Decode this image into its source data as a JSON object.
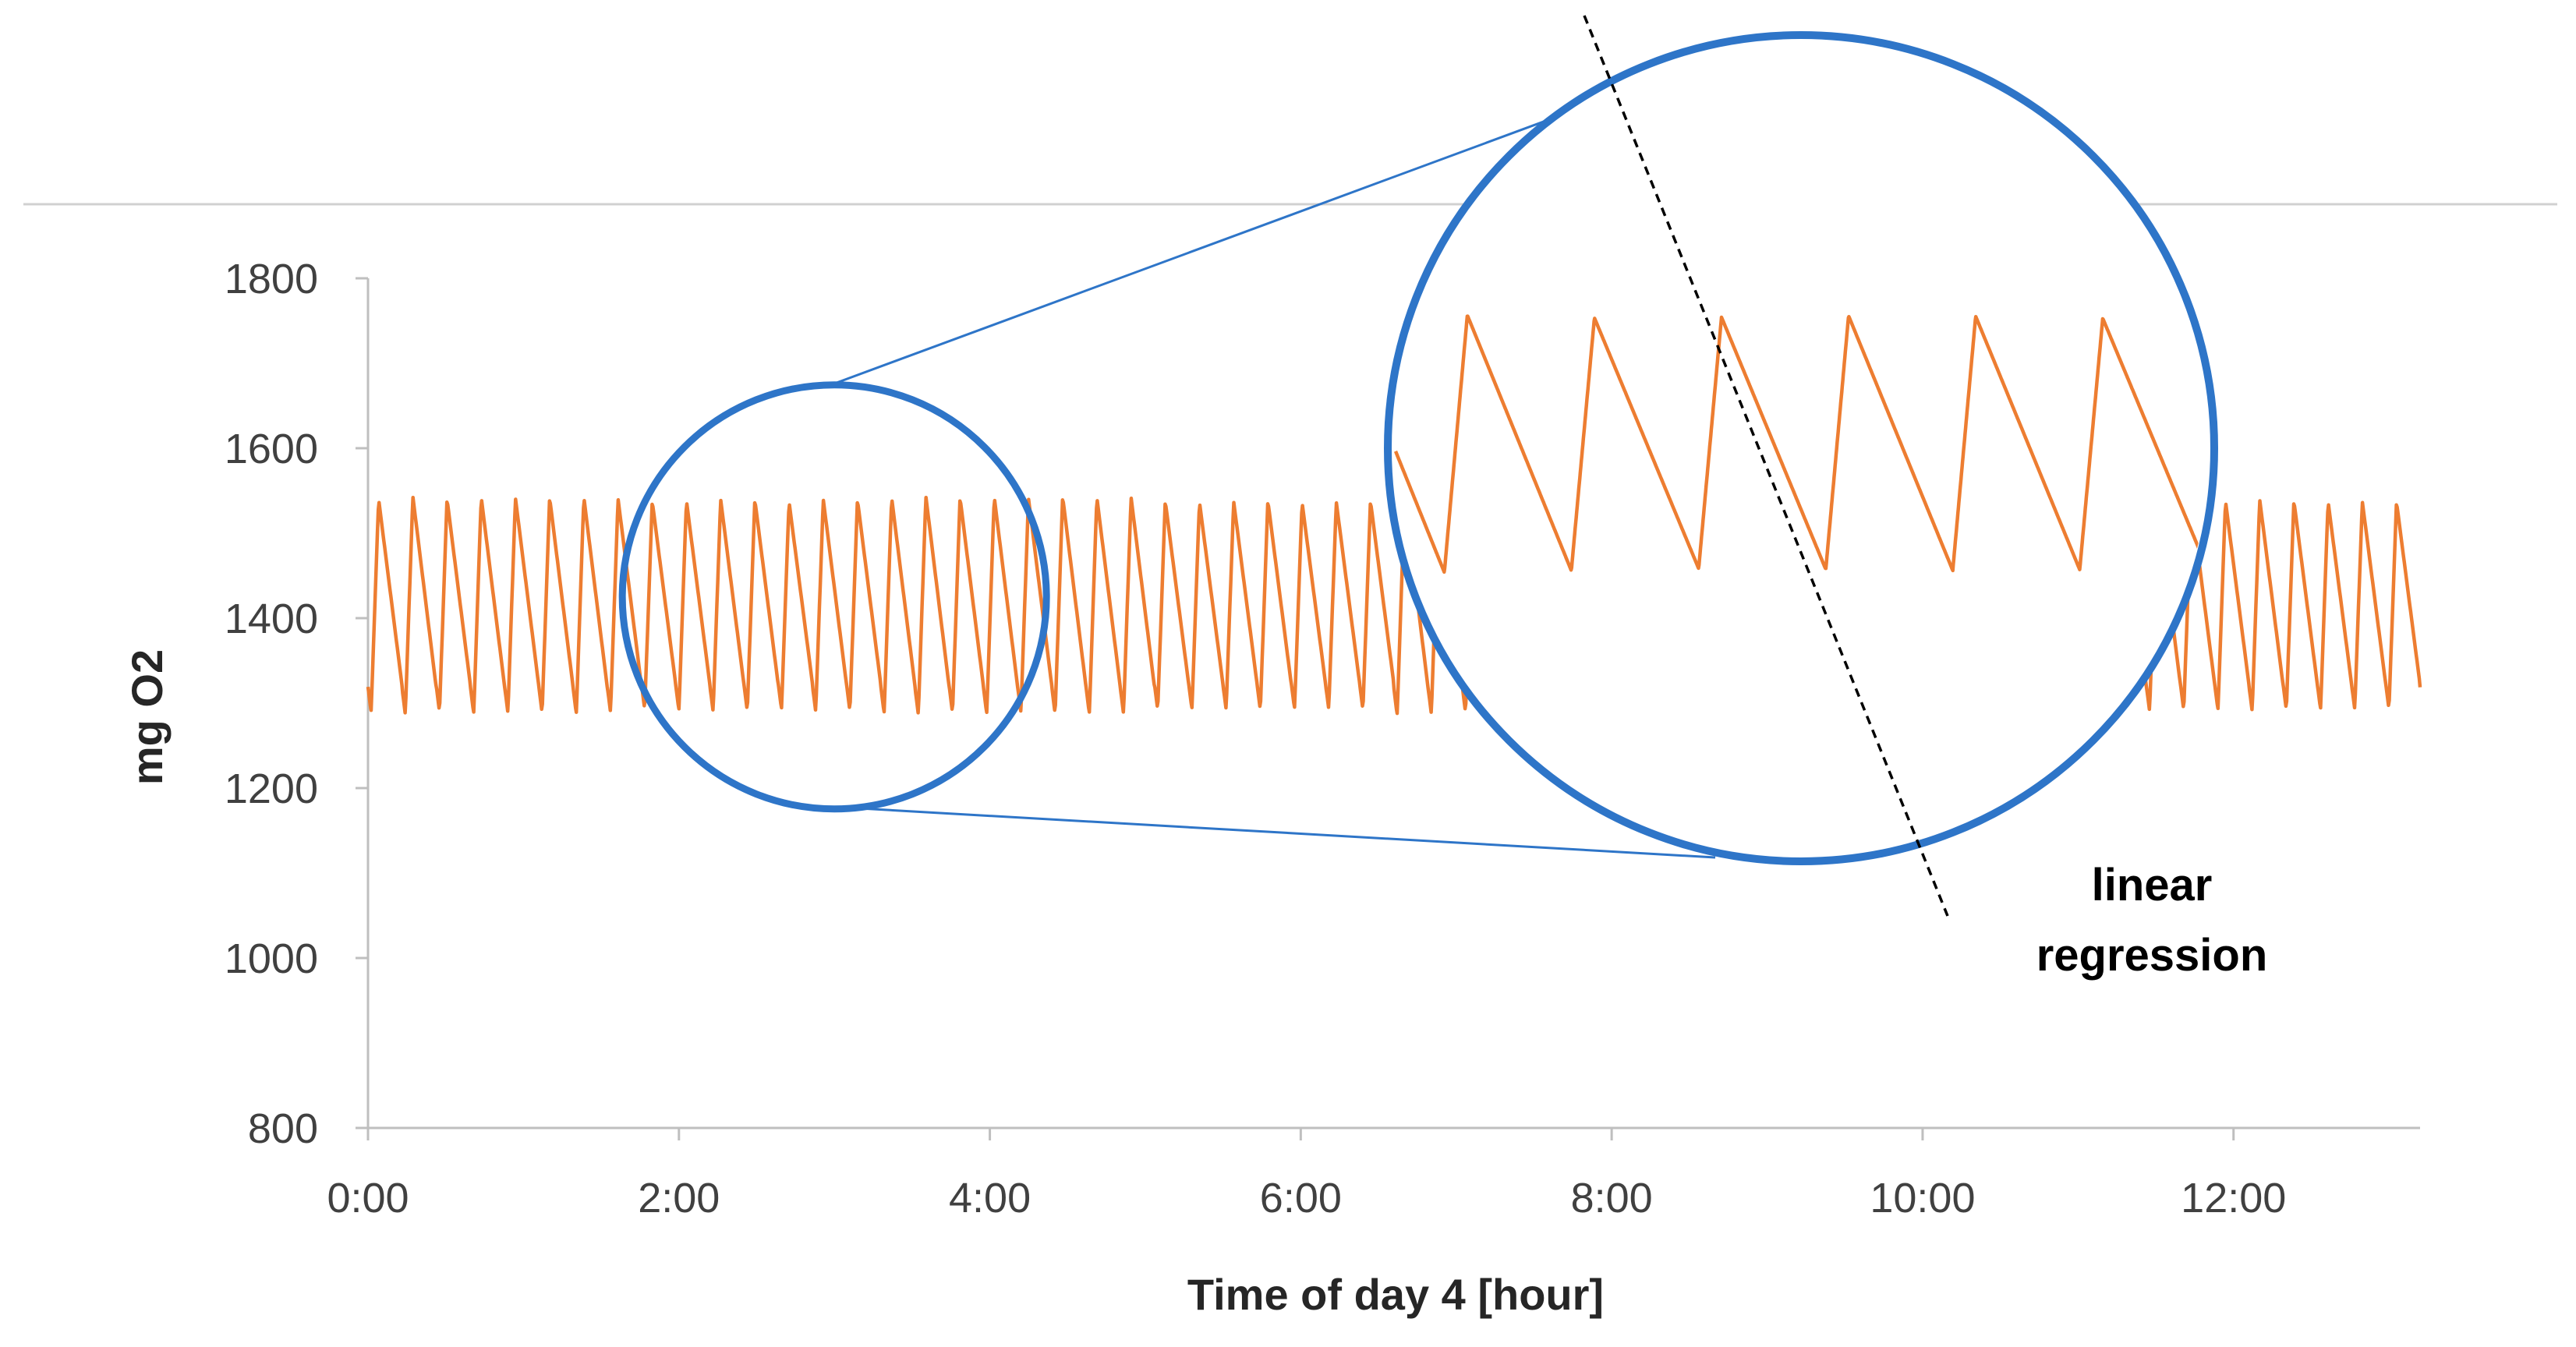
{
  "chart_data": {
    "type": "line",
    "title": "",
    "xlabel": "Time of day 4 [hour]",
    "ylabel": "mg O2",
    "xlim": [
      0,
      13.2
    ],
    "ylim": [
      800,
      1800
    ],
    "y_ticks": [
      800,
      1000,
      1200,
      1400,
      1600,
      1800
    ],
    "x_ticks": [
      {
        "value": 0,
        "label": "0:00"
      },
      {
        "value": 2,
        "label": "2:00"
      },
      {
        "value": 4,
        "label": "4:00"
      },
      {
        "value": 6,
        "label": "6:00"
      },
      {
        "value": 8,
        "label": "8:00"
      },
      {
        "value": 10,
        "label": "10:00"
      },
      {
        "value": 12,
        "label": "12:00"
      }
    ],
    "grid": false,
    "series": [
      {
        "name": "mg O2",
        "color": "#ED7D31",
        "pattern": "sawtooth",
        "period_hours": 0.22,
        "rise_fraction": 0.22,
        "min_value": 1290,
        "max_value": 1540,
        "x_start": 0,
        "x_end": 13.2
      }
    ],
    "inset": {
      "description": "magnified view of oscillations around 3:00",
      "source_center": {
        "x": 3.0,
        "y": 1425
      },
      "source_half_width_hours": 1.35,
      "cycles_shown": 6,
      "magnified_min": 1455,
      "magnified_max": 1740,
      "circle_color": "#2E75C8",
      "regression_line_color": "#000000"
    },
    "annotations": [
      {
        "text": "linear",
        "near": "regression line"
      },
      {
        "text": "regression",
        "near": "regression line"
      }
    ]
  }
}
